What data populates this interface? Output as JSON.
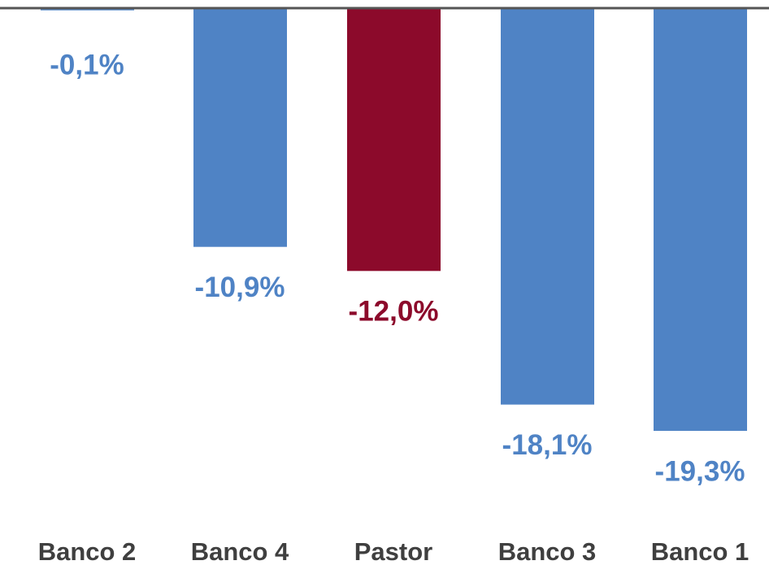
{
  "chart_data": {
    "type": "bar",
    "categories": [
      "Banco 2",
      "Banco 4",
      "Pastor",
      "Banco 3",
      "Banco 1"
    ],
    "values": [
      -0.1,
      -10.9,
      -12.0,
      -18.1,
      -19.3
    ],
    "value_labels": [
      "-0,1%",
      "-10,9%",
      "-12,0%",
      "-18,1%",
      "-19,3%"
    ],
    "colors": [
      "#4f83c5",
      "#4f83c5",
      "#8c0a2b",
      "#4f83c5",
      "#4f83c5"
    ]
  }
}
